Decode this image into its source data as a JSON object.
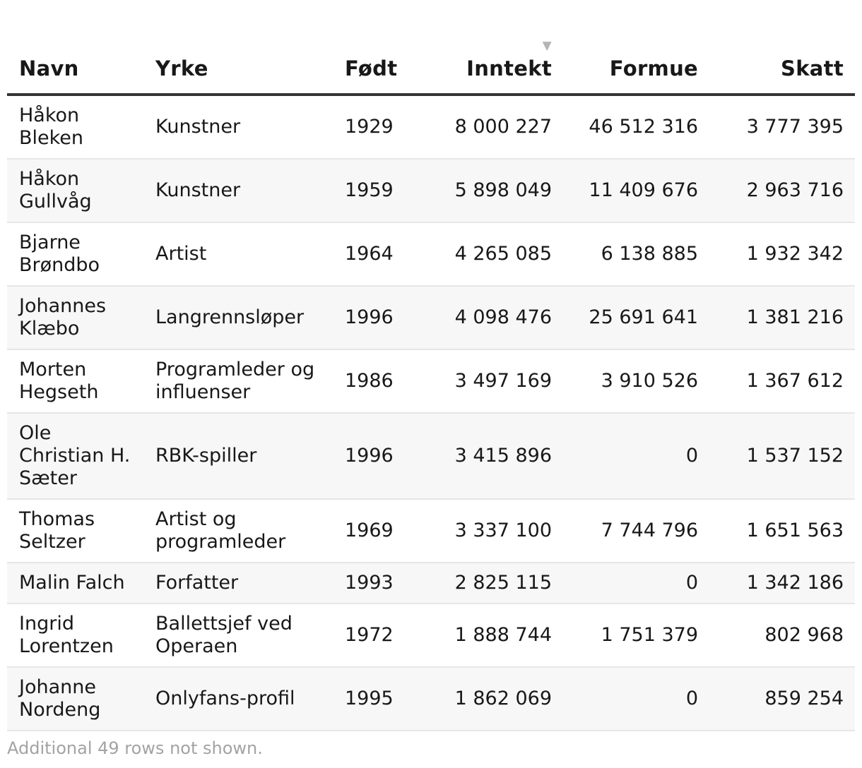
{
  "chart_data": {
    "type": "table",
    "columns": [
      {
        "label": "Navn",
        "align": "left"
      },
      {
        "label": "Yrke",
        "align": "left"
      },
      {
        "label": "Født",
        "align": "left"
      },
      {
        "label": "Inntekt",
        "align": "right",
        "sorted": "descending"
      },
      {
        "label": "Formue",
        "align": "right"
      },
      {
        "label": "Skatt",
        "align": "right"
      }
    ],
    "rows": [
      {
        "navn": "Håkon Bleken",
        "yrke": "Kunstner",
        "fodt": "1929",
        "inntekt": "8 000 227",
        "formue": "46 512 316",
        "skatt": "3 777 395"
      },
      {
        "navn": "Håkon Gullvåg",
        "yrke": "Kunstner",
        "fodt": "1959",
        "inntekt": "5 898 049",
        "formue": "11 409 676",
        "skatt": "2 963 716"
      },
      {
        "navn": "Bjarne Brøndbo",
        "yrke": "Artist",
        "fodt": "1964",
        "inntekt": "4 265 085",
        "formue": "6 138 885",
        "skatt": "1 932 342"
      },
      {
        "navn": "Johannes Klæbo",
        "yrke": "Langrennsløper",
        "fodt": "1996",
        "inntekt": "4 098 476",
        "formue": "25 691 641",
        "skatt": "1 381 216"
      },
      {
        "navn": "Morten Hegseth",
        "yrke": "Programleder og influenser",
        "fodt": "1986",
        "inntekt": "3 497 169",
        "formue": "3 910 526",
        "skatt": "1 367 612"
      },
      {
        "navn": "Ole Christian H. Sæter",
        "yrke": "RBK-spiller",
        "fodt": "1996",
        "inntekt": "3 415 896",
        "formue": "0",
        "skatt": "1 537 152"
      },
      {
        "navn": "Thomas Seltzer",
        "yrke": "Artist og programleder",
        "fodt": "1969",
        "inntekt": "3 337 100",
        "formue": "7 744 796",
        "skatt": "1 651 563"
      },
      {
        "navn": "Malin Falch",
        "yrke": "Forfatter",
        "fodt": "1993",
        "inntekt": "2 825 115",
        "formue": "0",
        "skatt": "1 342 186"
      },
      {
        "navn": "Ingrid Lorentzen",
        "yrke": "Ballettsjef ved Operaen",
        "fodt": "1972",
        "inntekt": "1 888 744",
        "formue": "1 751 379",
        "skatt": "802 968"
      },
      {
        "navn": "Johanne Nordeng",
        "yrke": "Onlyfans-profil",
        "fodt": "1995",
        "inntekt": "1 862 069",
        "formue": "0",
        "skatt": "859 254"
      }
    ],
    "footnote": "Additional 49 rows not shown."
  },
  "icons": {
    "sort_indicator": "sort-descending-icon"
  },
  "colors": {
    "header_rule": "#333333",
    "row_divider": "#e6e6e6",
    "zebra": "#f7f7f7",
    "footnote": "#a3a3a3",
    "sort_arrow": "#b5b5b5"
  }
}
